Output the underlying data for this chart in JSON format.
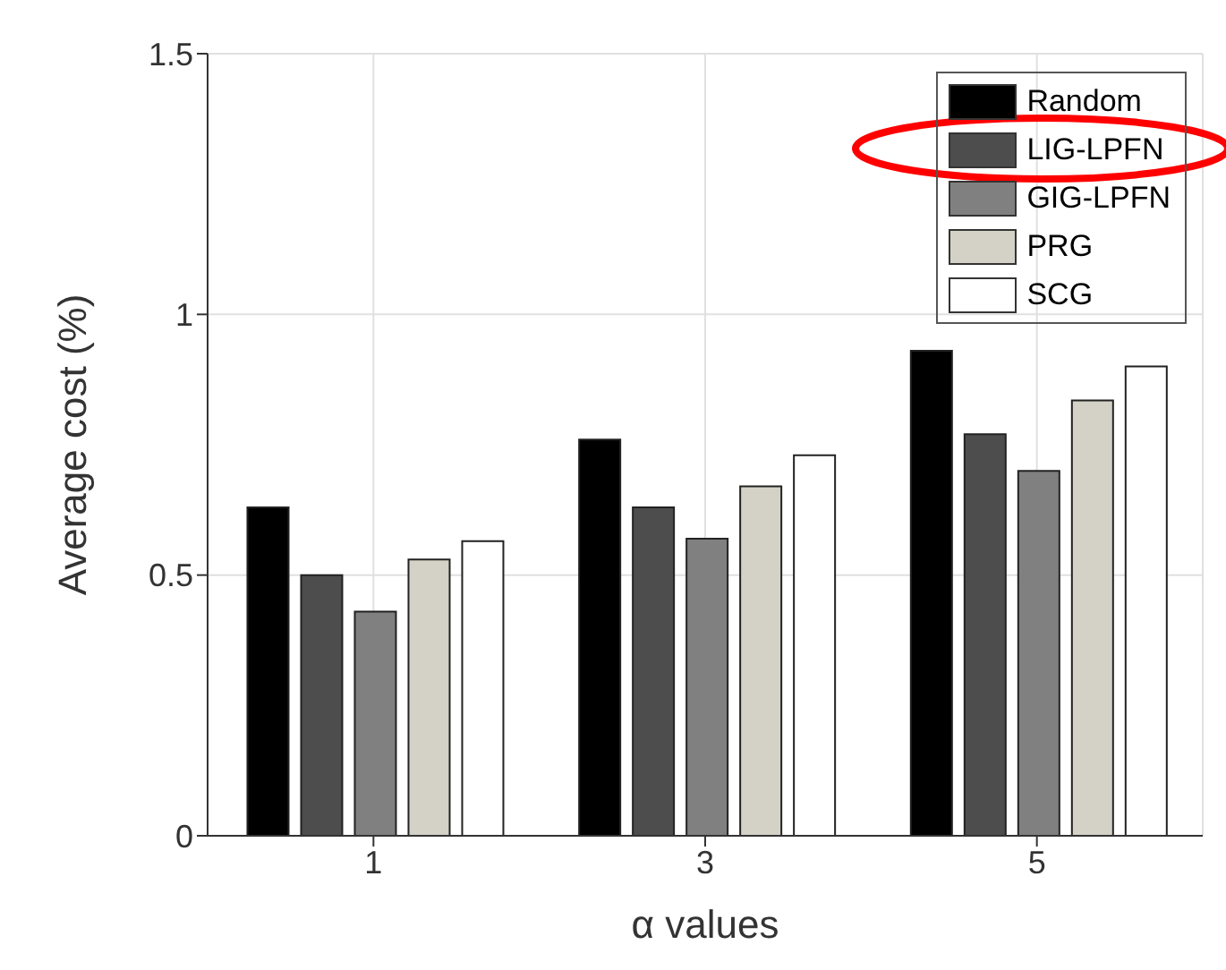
{
  "chart_data": {
    "type": "bar",
    "xlabel": "α values",
    "ylabel": "Average cost (%)",
    "categories": [
      "1",
      "3",
      "5"
    ],
    "series": [
      {
        "name": "Random",
        "color": "#000000",
        "values": [
          0.63,
          0.76,
          0.93
        ]
      },
      {
        "name": "LIG-LPFN",
        "color": "#4d4d4d",
        "values": [
          0.5,
          0.63,
          0.77
        ]
      },
      {
        "name": "GIG-LPFN",
        "color": "#808080",
        "values": [
          0.43,
          0.57,
          0.7
        ]
      },
      {
        "name": "PRG",
        "color": "#d4d2c6",
        "values": [
          0.53,
          0.67,
          0.835
        ]
      },
      {
        "name": "SCG",
        "color": "#ffffff",
        "values": [
          0.565,
          0.73,
          0.9
        ]
      }
    ],
    "ylim": [
      0,
      1.5
    ],
    "yticks": [
      0,
      0.5,
      1,
      1.5
    ],
    "grid": true,
    "legend": "top right"
  }
}
